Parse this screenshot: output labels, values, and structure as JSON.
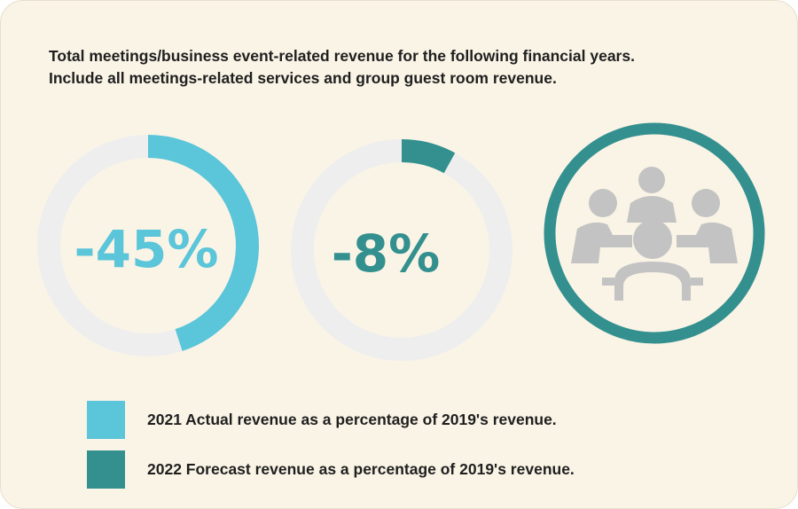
{
  "title_lines": [
    "Total meetings/business event-related revenue for the following financial years.",
    "Include all meetings-related services and group guest room revenue."
  ],
  "colors": {
    "actual_2021": "#5bc5d9",
    "forecast_2022": "#33908f",
    "track": "#eeeeee",
    "icon_ring": "#33908f",
    "icon_people": "#c3c3c3",
    "background": "#faf4e6"
  },
  "legend": [
    {
      "label": "2021 Actual revenue as a percentage of 2019's revenue.",
      "color": "#5bc5d9"
    },
    {
      "label": "2022 Forecast revenue as a percentage of 2019's revenue.",
      "color": "#33908f"
    }
  ],
  "icons": {
    "meeting": "meeting-people-icon"
  },
  "chart_data": {
    "type": "pie",
    "title": "Total meetings/business event-related revenue for the following financial years.",
    "series": [
      {
        "name": "2021 Actual revenue as a percentage of 2019's revenue.",
        "value": -45,
        "display": "-45%",
        "ring_fraction": 0.45,
        "color": "#5bc5d9"
      },
      {
        "name": "2022 Forecast revenue as a percentage of 2019's revenue.",
        "value": -8,
        "display": "-8%",
        "ring_fraction": 0.08,
        "color": "#33908f"
      }
    ]
  }
}
